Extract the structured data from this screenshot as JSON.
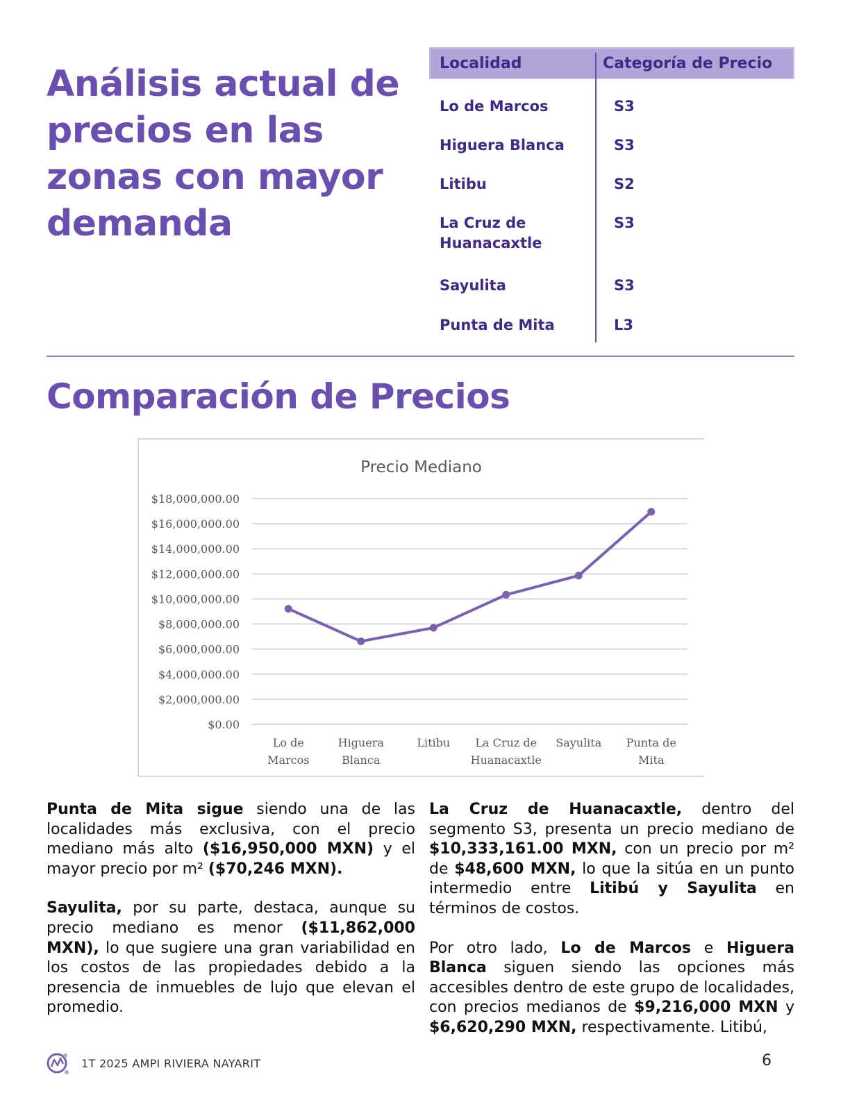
{
  "heading": "Análisis actual de precios en las zonas con mayor demanda",
  "table": {
    "headers": [
      "Localidad",
      "Categoría de Precio"
    ],
    "rows": [
      {
        "localidad": "Lo de Marcos",
        "categoria": "S3"
      },
      {
        "localidad": "Higuera Blanca",
        "categoria": "S3"
      },
      {
        "localidad": "Litibu",
        "categoria": "S2"
      },
      {
        "localidad": "La Cruz de Huanacaxtle",
        "categoria": "S3"
      },
      {
        "localidad": "Sayulita",
        "categoria": "S3"
      },
      {
        "localidad": "Punta de Mita",
        "categoria": "L3"
      }
    ]
  },
  "section_title": "Comparación de Precios",
  "chart_data": {
    "type": "line",
    "title": "Precio Mediano",
    "categories": [
      "Lo de Marcos",
      "Higuera Blanca",
      "Litibu",
      "La Cruz de Huanacaxtle",
      "Sayulita",
      "Punta de Mita"
    ],
    "values": [
      9216000,
      6620290,
      7700000,
      10333161,
      11862000,
      16950000
    ],
    "ylim": [
      0,
      18000000
    ],
    "yticks": [
      "$0.00",
      "$2,000,000.00",
      "$4,000,000.00",
      "$6,000,000.00",
      "$8,000,000.00",
      "$10,000,000.00",
      "$12,000,000.00",
      "$14,000,000.00",
      "$16,000,000.00",
      "$18,000,000.00"
    ],
    "xtick_lines": [
      [
        "Lo de",
        "Marcos"
      ],
      [
        "Higuera",
        "Blanca"
      ],
      [
        "Litibu"
      ],
      [
        "La Cruz de",
        "Huanacaxtle"
      ],
      [
        "Sayulita"
      ],
      [
        "Punta de",
        "Mita"
      ]
    ],
    "grid": true,
    "line_color": "#7b5fb3",
    "xlabel": "",
    "ylabel": ""
  },
  "paragraphs": {
    "left_1": [
      {
        "t": "Punta de Mita sigue",
        "b": true
      },
      {
        "t": " siendo una de las localidades más exclusiva, con el precio mediano más alto "
      },
      {
        "t": "($16,950,000 MXN)",
        "b": true
      },
      {
        "t": " y el mayor precio por m² "
      },
      {
        "t": "($70,246 MXN).",
        "b": true
      }
    ],
    "left_2": [
      {
        "t": "Sayulita,",
        "b": true
      },
      {
        "t": " por su parte, destaca, aunque su precio mediano es menor "
      },
      {
        "t": "($11,862,000 MXN),",
        "b": true
      },
      {
        "t": " lo que sugiere una gran variabilidad en los costos de las propiedades debido a la presencia de inmuebles de lujo que elevan el promedio."
      }
    ],
    "right_1": [
      {
        "t": "La Cruz de Huanacaxtle,",
        "b": true
      },
      {
        "t": " dentro del segmento S3, presenta un precio mediano de "
      },
      {
        "t": "$10,333,161.00 MXN,",
        "b": true
      },
      {
        "t": " con un precio por m² de "
      },
      {
        "t": "$48,600 MXN,",
        "b": true
      },
      {
        "t": " lo que la sitúa en un punto intermedio entre "
      },
      {
        "t": "Litibú y Sayulita",
        "b": true
      },
      {
        "t": " en términos de costos."
      }
    ],
    "right_2": [
      {
        "t": "Por otro lado, "
      },
      {
        "t": "Lo de Marcos",
        "b": true
      },
      {
        "t": " e "
      },
      {
        "t": "Higuera Blanca",
        "b": true
      },
      {
        "t": " siguen siendo las opciones más accesibles dentro de este grupo de localidades, con precios medianos de "
      },
      {
        "t": "$9,216,000 MXN",
        "b": true
      },
      {
        "t": " y "
      },
      {
        "t": "$6,620,290 MXN,",
        "b": true
      },
      {
        "t": " respectivamente. Litibú,"
      }
    ]
  },
  "footer": {
    "text": "1T 2025 AMPI RIVIERA NAYARIT",
    "page_number": "6"
  }
}
